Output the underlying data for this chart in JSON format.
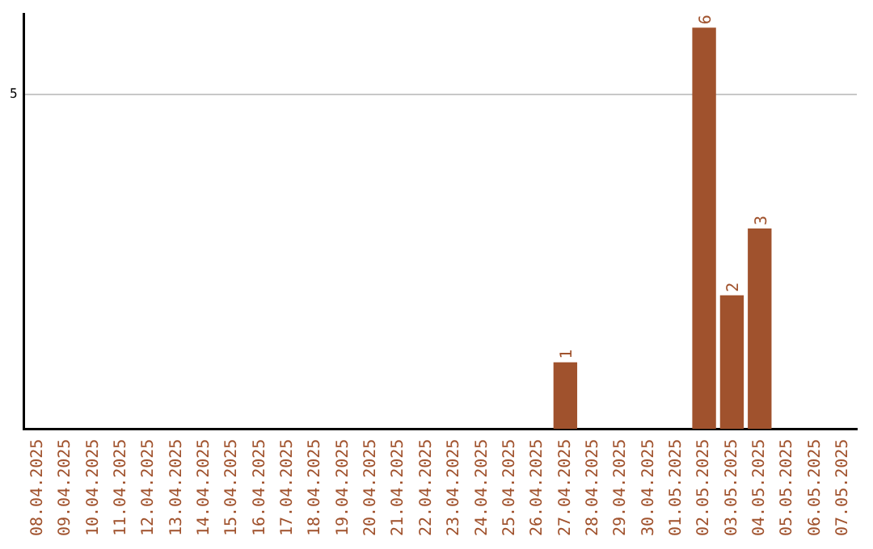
{
  "chart_data": {
    "type": "bar",
    "categories": [
      "08.04.2025",
      "09.04.2025",
      "10.04.2025",
      "11.04.2025",
      "12.04.2025",
      "13.04.2025",
      "14.04.2025",
      "15.04.2025",
      "16.04.2025",
      "17.04.2025",
      "18.04.2025",
      "19.04.2025",
      "20.04.2025",
      "21.04.2025",
      "22.04.2025",
      "23.04.2025",
      "24.04.2025",
      "25.04.2025",
      "26.04.2025",
      "27.04.2025",
      "28.04.2025",
      "29.04.2025",
      "30.04.2025",
      "01.05.2025",
      "02.05.2025",
      "03.05.2025",
      "04.05.2025",
      "05.05.2025",
      "06.05.2025",
      "07.05.2025"
    ],
    "values": [
      null,
      null,
      null,
      null,
      null,
      null,
      null,
      null,
      null,
      null,
      null,
      null,
      null,
      null,
      null,
      null,
      null,
      null,
      null,
      1,
      null,
      null,
      null,
      null,
      6,
      2,
      3,
      null,
      null,
      null
    ],
    "color": "#a0522d",
    "ylim": [
      0,
      6.2
    ],
    "yticks": [
      5
    ],
    "grid": "y",
    "data_labels": true,
    "legend": false
  }
}
